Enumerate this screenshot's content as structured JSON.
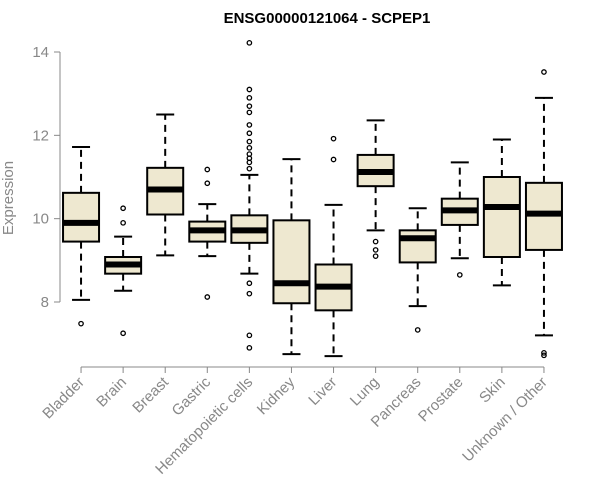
{
  "chart_data": {
    "type": "boxplot",
    "title": "ENSG00000121064 - SCPEP1",
    "xlabel": "",
    "ylabel": "Expression",
    "ylim": [
      6.6,
      14.3
    ],
    "yticks": [
      8,
      10,
      12,
      14
    ],
    "grid": false,
    "colors": {
      "box_fill": "#EEE8D0",
      "stroke": "#000000",
      "axis": "#888888"
    },
    "categories": [
      "Bladder",
      "Brain",
      "Breast",
      "Gastric",
      "Hematopoietic cells",
      "Kidney",
      "Liver",
      "Lung",
      "Pancreas",
      "Prostate",
      "Skin",
      "Unknown / Other"
    ],
    "boxes": [
      {
        "whisker_low": 8.05,
        "q1": 9.45,
        "median": 9.9,
        "q3": 10.62,
        "whisker_high": 11.72,
        "outliers": [
          7.48
        ]
      },
      {
        "whisker_low": 8.27,
        "q1": 8.68,
        "median": 8.9,
        "q3": 9.08,
        "whisker_high": 9.57,
        "outliers": [
          7.25,
          9.9,
          10.25
        ]
      },
      {
        "whisker_low": 9.12,
        "q1": 10.1,
        "median": 10.7,
        "q3": 11.22,
        "whisker_high": 12.5,
        "outliers": []
      },
      {
        "whisker_low": 9.1,
        "q1": 9.45,
        "median": 9.72,
        "q3": 9.93,
        "whisker_high": 10.35,
        "outliers": [
          8.12,
          10.85,
          11.18
        ]
      },
      {
        "whisker_low": 8.68,
        "q1": 9.42,
        "median": 9.72,
        "q3": 10.08,
        "whisker_high": 11.05,
        "outliers": [
          6.9,
          7.2,
          8.2,
          8.45,
          11.2,
          11.35,
          11.45,
          11.55,
          11.7,
          11.85,
          12.05,
          12.25,
          12.55,
          12.7,
          12.9,
          13.1,
          14.22
        ]
      },
      {
        "whisker_low": 6.75,
        "q1": 7.97,
        "median": 8.45,
        "q3": 9.96,
        "whisker_high": 11.43,
        "outliers": []
      },
      {
        "whisker_low": 6.7,
        "q1": 7.8,
        "median": 8.37,
        "q3": 8.9,
        "whisker_high": 10.33,
        "outliers": [
          11.42,
          11.92
        ]
      },
      {
        "whisker_low": 9.72,
        "q1": 10.78,
        "median": 11.12,
        "q3": 11.53,
        "whisker_high": 12.36,
        "outliers": [
          9.1,
          9.25,
          9.45
        ]
      },
      {
        "whisker_low": 7.9,
        "q1": 8.95,
        "median": 9.53,
        "q3": 9.72,
        "whisker_high": 10.25,
        "outliers": [
          7.33
        ]
      },
      {
        "whisker_low": 9.05,
        "q1": 9.85,
        "median": 10.2,
        "q3": 10.48,
        "whisker_high": 11.35,
        "outliers": [
          8.65
        ]
      },
      {
        "whisker_low": 8.4,
        "q1": 9.08,
        "median": 10.28,
        "q3": 11.0,
        "whisker_high": 11.9,
        "outliers": []
      },
      {
        "whisker_low": 7.2,
        "q1": 9.25,
        "median": 10.12,
        "q3": 10.86,
        "whisker_high": 12.9,
        "outliers": [
          6.72,
          6.78,
          13.52
        ]
      }
    ]
  }
}
